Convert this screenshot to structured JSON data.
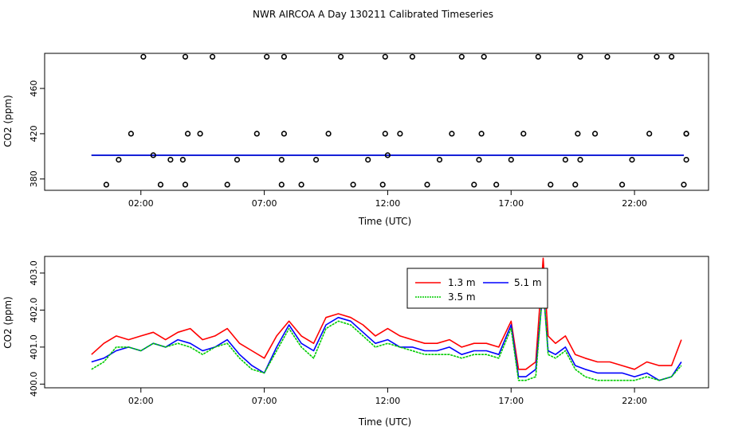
{
  "chart_data": [
    {
      "type": "scatter",
      "title": "NWR AIRCOA A  Day 130211  Calibrated Timeseries",
      "xlabel": "Time (UTC)",
      "ylabel": "CO2 (ppm)",
      "xlim": [
        -1.9,
        25.0
      ],
      "ylim": [
        370,
        491
      ],
      "x_ticks": [
        {
          "v": 2,
          "label": "02:00"
        },
        {
          "v": 7,
          "label": "07:00"
        },
        {
          "v": 12,
          "label": "12:00"
        },
        {
          "v": 17,
          "label": "17:00"
        },
        {
          "v": 22,
          "label": "22:00"
        }
      ],
      "y_ticks": [
        {
          "v": 380,
          "label": "380"
        },
        {
          "v": 420,
          "label": "420"
        },
        {
          "v": 460,
          "label": "460"
        }
      ],
      "markers": {
        "x": [
          0.6,
          1.1,
          1.6,
          2.1,
          2.5,
          2.8,
          3.2,
          3.8,
          3.7,
          3.9,
          3.8,
          4.4,
          4.9,
          5.5,
          5.9,
          6.7,
          7.1,
          7.7,
          7.7,
          7.8,
          7.8,
          8.5,
          9.1,
          9.6,
          10.1,
          10.6,
          11.2,
          11.8,
          11.9,
          11.9,
          12.0,
          12.5,
          13.0,
          13.6,
          14.1,
          14.6,
          15.0,
          15.5,
          15.7,
          15.8,
          15.9,
          16.4,
          17.0,
          17.5,
          18.1,
          18.6,
          19.2,
          19.6,
          19.8,
          19.7,
          19.8,
          20.4,
          20.9,
          21.5,
          21.9,
          22.6,
          22.9,
          23.5,
          24.0,
          24.1,
          24.1,
          24.1
        ],
        "y": [
          375,
          397,
          420,
          488,
          401,
          375,
          397,
          375,
          397,
          420,
          488,
          420,
          488,
          375,
          397,
          420,
          488,
          375,
          397,
          420,
          488,
          375,
          397,
          420,
          488,
          375,
          397,
          375,
          420,
          488,
          401,
          420,
          488,
          375,
          397,
          420,
          488,
          375,
          397,
          420,
          488,
          375,
          397,
          420,
          488,
          375,
          397,
          375,
          397,
          420,
          488,
          420,
          488,
          375,
          397,
          420,
          488,
          488,
          375,
          397,
          420,
          420
        ]
      },
      "series": [
        {
          "color": "#ff0000",
          "x": [
            0.0,
            24.0
          ],
          "y": [
            401.0,
            401.0
          ]
        },
        {
          "color": "#00cc00",
          "x": [
            0.0,
            24.0
          ],
          "y": [
            401.0,
            401.0
          ]
        },
        {
          "color": "#0000ff",
          "x": [
            0.0,
            24.0
          ],
          "y": [
            401.0,
            401.0
          ]
        }
      ]
    },
    {
      "type": "line",
      "xlabel": "Time (UTC)",
      "ylabel": "CO2 (ppm)",
      "xlim": [
        -1.9,
        25.0
      ],
      "ylim": [
        399.9,
        403.45
      ],
      "x_ticks": [
        {
          "v": 2,
          "label": "02:00"
        },
        {
          "v": 7,
          "label": "07:00"
        },
        {
          "v": 12,
          "label": "12:00"
        },
        {
          "v": 17,
          "label": "17:00"
        },
        {
          "v": 22,
          "label": "22:00"
        }
      ],
      "y_ticks": [
        {
          "v": 400,
          "label": "400.0"
        },
        {
          "v": 401,
          "label": "401.0"
        },
        {
          "v": 402,
          "label": "402.0"
        },
        {
          "v": 403,
          "label": "403.0"
        }
      ],
      "legend": {
        "position": "top-right-center",
        "entries": [
          {
            "name": "1.3 m",
            "color": "#ff0000"
          },
          {
            "name": "5.1 m",
            "color": "#0000ff"
          },
          {
            "name": "3.5 m",
            "color": "#00cc00"
          }
        ]
      },
      "series": [
        {
          "name": "1.3 m",
          "color": "#ff0000",
          "x": [
            0.0,
            0.5,
            1.0,
            1.5,
            2.0,
            2.5,
            3.0,
            3.5,
            4.0,
            4.5,
            5.0,
            5.5,
            6.0,
            6.5,
            7.0,
            7.5,
            8.0,
            8.5,
            9.0,
            9.5,
            10.0,
            10.5,
            11.0,
            11.5,
            12.0,
            12.5,
            13.0,
            13.5,
            14.0,
            14.5,
            15.0,
            15.5,
            16.0,
            16.5,
            17.0,
            17.3,
            17.6,
            18.0,
            18.3,
            18.5,
            18.8,
            19.2,
            19.6,
            20.0,
            20.5,
            21.0,
            21.5,
            22.0,
            22.5,
            23.0,
            23.5,
            23.9
          ],
          "y": [
            400.8,
            401.1,
            401.3,
            401.2,
            401.3,
            401.4,
            401.2,
            401.4,
            401.5,
            401.2,
            401.3,
            401.5,
            401.1,
            400.9,
            400.7,
            401.3,
            401.7,
            401.3,
            401.1,
            401.8,
            401.9,
            401.8,
            401.6,
            401.3,
            401.5,
            401.3,
            401.2,
            401.1,
            401.1,
            401.2,
            401.0,
            401.1,
            401.1,
            401.0,
            401.7,
            400.4,
            400.4,
            400.6,
            403.4,
            401.3,
            401.1,
            401.3,
            400.8,
            400.7,
            400.6,
            400.6,
            400.5,
            400.4,
            400.6,
            400.5,
            400.5,
            401.2
          ]
        },
        {
          "name": "5.1 m",
          "color": "#0000ff",
          "x": [
            0.0,
            0.5,
            1.0,
            1.5,
            2.0,
            2.5,
            3.0,
            3.5,
            4.0,
            4.5,
            5.0,
            5.5,
            6.0,
            6.5,
            7.0,
            7.5,
            8.0,
            8.5,
            9.0,
            9.5,
            10.0,
            10.5,
            11.0,
            11.5,
            12.0,
            12.5,
            13.0,
            13.5,
            14.0,
            14.5,
            15.0,
            15.5,
            16.0,
            16.5,
            17.0,
            17.3,
            17.6,
            18.0,
            18.3,
            18.5,
            18.8,
            19.2,
            19.6,
            20.0,
            20.5,
            21.0,
            21.5,
            22.0,
            22.5,
            23.0,
            23.5,
            23.9
          ],
          "y": [
            400.6,
            400.7,
            400.9,
            401.0,
            400.9,
            401.1,
            401.0,
            401.2,
            401.1,
            400.9,
            401.0,
            401.2,
            400.8,
            400.5,
            400.3,
            401.0,
            401.6,
            401.1,
            400.9,
            401.6,
            401.8,
            401.7,
            401.4,
            401.1,
            401.2,
            401.0,
            401.0,
            400.9,
            400.9,
            401.0,
            400.8,
            400.9,
            400.9,
            400.8,
            401.6,
            400.2,
            400.2,
            400.4,
            402.6,
            400.9,
            400.8,
            401.0,
            400.5,
            400.4,
            400.3,
            400.3,
            400.3,
            400.2,
            400.3,
            400.1,
            400.2,
            400.6
          ]
        },
        {
          "name": "3.5 m",
          "color": "#00cc00",
          "x": [
            0.0,
            0.5,
            1.0,
            1.5,
            2.0,
            2.5,
            3.0,
            3.5,
            4.0,
            4.5,
            5.0,
            5.5,
            6.0,
            6.5,
            7.0,
            7.5,
            8.0,
            8.5,
            9.0,
            9.5,
            10.0,
            10.5,
            11.0,
            11.5,
            12.0,
            12.5,
            13.0,
            13.5,
            14.0,
            14.5,
            15.0,
            15.5,
            16.0,
            16.5,
            17.0,
            17.3,
            17.6,
            18.0,
            18.3,
            18.5,
            18.8,
            19.2,
            19.6,
            20.0,
            20.5,
            21.0,
            21.5,
            22.0,
            22.5,
            23.0,
            23.5,
            23.9
          ],
          "y": [
            400.4,
            400.6,
            401.0,
            401.0,
            400.9,
            401.1,
            401.0,
            401.1,
            401.0,
            400.8,
            401.0,
            401.1,
            400.7,
            400.4,
            400.3,
            400.9,
            401.5,
            401.0,
            400.7,
            401.5,
            401.7,
            401.6,
            401.3,
            401.0,
            401.1,
            401.0,
            400.9,
            400.8,
            400.8,
            400.8,
            400.7,
            400.8,
            400.8,
            400.7,
            401.5,
            400.1,
            400.1,
            400.2,
            402.7,
            400.8,
            400.7,
            400.9,
            400.4,
            400.2,
            400.1,
            400.1,
            400.1,
            400.1,
            400.2,
            400.1,
            400.2,
            400.5
          ]
        }
      ]
    }
  ]
}
